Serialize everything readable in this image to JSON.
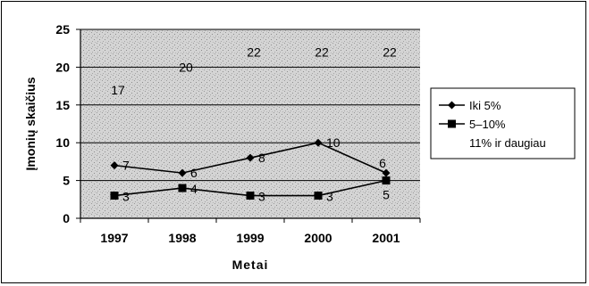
{
  "chart_data": {
    "type": "line",
    "xlabel": "Metai",
    "ylabel": "Įmonių skaičius",
    "ylim": [
      0,
      25
    ],
    "yticks": [
      "0",
      "5",
      "10",
      "15",
      "20",
      "25"
    ],
    "categories": [
      "1997",
      "1998",
      "1999",
      "2000",
      "2001"
    ],
    "grid": true,
    "legend_position": "right",
    "series": [
      {
        "name": "Iki  5%",
        "marker": "diamond",
        "values": [
          7,
          6,
          8,
          10,
          6
        ],
        "labels": [
          "7",
          "6",
          "8",
          "10",
          "6"
        ]
      },
      {
        "name": "5–10%",
        "marker": "square",
        "values": [
          3,
          4,
          3,
          3,
          5
        ],
        "labels": [
          "3",
          "4",
          "3",
          "3",
          "5"
        ]
      },
      {
        "name": "11% ir daugiau",
        "marker": "none",
        "values": [
          17,
          20,
          22,
          22,
          22
        ],
        "labels": [
          "17",
          "20",
          "22",
          "22",
          "22"
        ]
      }
    ]
  }
}
